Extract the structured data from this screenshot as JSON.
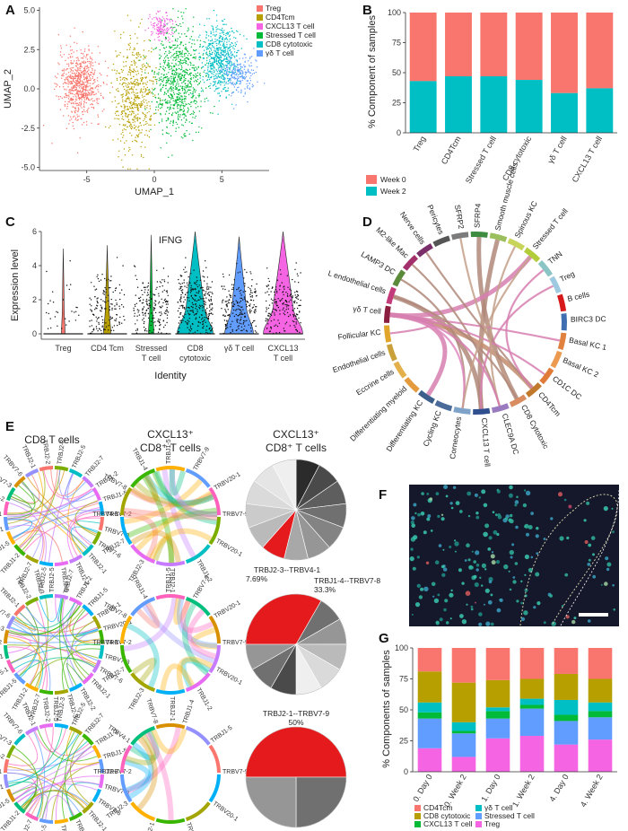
{
  "panels": {
    "A": "A",
    "B": "B",
    "C": "C",
    "D": "D",
    "E": "E",
    "F": "F",
    "G": "G"
  },
  "colors": {
    "treg": "#f8766d",
    "cd4tcm": "#b79f00",
    "cxcl13": "#f564e3",
    "stressed": "#00ba38",
    "cd8": "#00bfc4",
    "gd": "#619cff",
    "week0": "#f8766d",
    "week2": "#00bfc4",
    "pie_red": "#e41a1c"
  },
  "chart_data": [
    {
      "id": "A",
      "type": "scatter",
      "title": "",
      "xlabel": "UMAP_1",
      "ylabel": "UMAP_2",
      "xticks": [
        "-5",
        "0",
        "5"
      ],
      "yticks": [
        "5.0",
        "2.5",
        "0.0",
        "-2.5",
        "-5.0"
      ],
      "xlim": [
        -8.5,
        8.5
      ],
      "ylim": [
        -5.2,
        5.2
      ],
      "legend": [
        "Treg",
        "CD4Tcm",
        "CXCL13 T cell",
        "Stressed T cell",
        "CD8 cytotoxic",
        "γδ T cell"
      ],
      "clusters": [
        {
          "name": "Treg",
          "center": [
            -5.5,
            0.3
          ],
          "spread": [
            1.7,
            2.4
          ],
          "n": 700
        },
        {
          "name": "CD4Tcm",
          "center": [
            -1.5,
            -0.5
          ],
          "spread": [
            1.6,
            3.8
          ],
          "n": 550
        },
        {
          "name": "CXCL13 T cell",
          "center": [
            0.5,
            4.0
          ],
          "spread": [
            1.0,
            1.0
          ],
          "n": 150
        },
        {
          "name": "Stressed T cell",
          "center": [
            1.8,
            0.5
          ],
          "spread": [
            2.0,
            3.6
          ],
          "n": 800
        },
        {
          "name": "CD8 cytotoxic",
          "center": [
            4.8,
            1.8
          ],
          "spread": [
            1.5,
            2.5
          ],
          "n": 600
        },
        {
          "name": "γδ T cell",
          "center": [
            6.3,
            1.0
          ],
          "spread": [
            1.2,
            1.5
          ],
          "n": 220
        }
      ]
    },
    {
      "id": "B",
      "type": "bar",
      "stacked": true,
      "categories": [
        "Treg",
        "CD4Tcm",
        "Stressed T cell",
        "CD8 cytotoxic",
        "γδ T cell",
        "CXCL13 T cell"
      ],
      "series": [
        {
          "name": "Week 0",
          "values": [
            57,
            53,
            53,
            56,
            67,
            63
          ]
        },
        {
          "name": "Week 2",
          "values": [
            43,
            47,
            47,
            44,
            33,
            37
          ]
        }
      ],
      "ylabel": "% Component of samples",
      "yticks": [
        "0",
        "25",
        "50",
        "75",
        "100"
      ],
      "ylim": [
        0,
        100
      ]
    },
    {
      "id": "C",
      "type": "violin",
      "title": "IFNG",
      "categories": [
        "Treg",
        "CD4 Tcm",
        "Stressed T cell",
        "CD8 cytotoxic",
        "γδ T cell",
        "CXCL13 T cell"
      ],
      "xlabel": "Identity",
      "ylabel": "Expression level",
      "yticks": [
        "0",
        "2",
        "4",
        "6"
      ],
      "ylim": [
        0,
        6
      ],
      "max_values": [
        5.0,
        5.2,
        5.8,
        6.0,
        5.7,
        6.0
      ]
    },
    {
      "id": "G",
      "type": "bar",
      "stacked": true,
      "categories": [
        "0. Day 0",
        "0. Week 2",
        "1. Day 0",
        "1. Week 2",
        "4. Day 0",
        "4. Week 2"
      ],
      "series": [
        {
          "name": "Treg",
          "values": [
            19,
            12,
            27,
            29,
            22,
            26
          ]
        },
        {
          "name": "Stressed T cell",
          "values": [
            24,
            19,
            16,
            22,
            19,
            18
          ]
        },
        {
          "name": "CXCL13 T cell",
          "values": [
            5,
            2,
            6,
            3,
            5,
            5
          ]
        },
        {
          "name": "γδ T cell",
          "values": [
            8,
            7,
            3,
            5,
            12,
            7
          ]
        },
        {
          "name": "CD8 cytotoxic",
          "values": [
            25,
            32,
            22,
            16,
            21,
            19
          ]
        },
        {
          "name": "CD4Tcm",
          "values": [
            19,
            28,
            26,
            25,
            21,
            25
          ]
        }
      ],
      "ylabel": "% Components of samples",
      "yticks": [
        "0",
        "25",
        "50",
        "75",
        "100"
      ],
      "ylim": [
        0,
        100
      ]
    }
  ],
  "panelA": {
    "legend": [
      "Treg",
      "CD4Tcm",
      "CXCL13 T cell",
      "Stressed T cell",
      "CD8 cytotoxic",
      "γδ T cell"
    ],
    "xlabel": "UMAP_1",
    "ylabel": "UMAP_2"
  },
  "panelB": {
    "legend": [
      "Week 0",
      "Week 2"
    ]
  },
  "panelC": {
    "title": "IFNG",
    "xlabels": [
      [
        "Treg"
      ],
      [
        "CD4 Tcm"
      ],
      [
        "Stressed",
        "T cell"
      ],
      [
        "CD8",
        "cytotoxic"
      ],
      [
        "γδ T cell"
      ],
      [
        "CXCL13",
        "T cell"
      ]
    ]
  },
  "panelD": {
    "labels": [
      "SFRP2",
      "SFRP4",
      "Smooth muscle cells",
      "Spinous KC",
      "Stressed T cell",
      "TNN",
      "Treg",
      "B cells",
      "BIRC3 DC",
      "Basal KC 1",
      "Basal KC 2",
      "CD1C DC",
      "CD4Tcm",
      "CD8 Cytotoxic",
      "CLEC9A DC",
      "CXCL13 T cell",
      "Corneocytes",
      "Cycling KC",
      "Differentiating KC",
      "Differentiating myeloid",
      "Eccrine cells",
      "Endothelial cells",
      "Follicular KC",
      "γδ T cell",
      "L endothelial cells",
      "LAMP3 DC",
      "M2-like Mac",
      "Nerve cells",
      "Pericytes"
    ]
  },
  "panelE": {
    "headers": [
      [
        "CD8 T cells"
      ],
      [
        "CXCL13⁺",
        "CD8⁺ T cells"
      ],
      [
        "CXCL13⁺",
        "CD8⁺ T cells"
      ]
    ],
    "pies": [
      {
        "label": "TRBJ2-3--TRBV4-1",
        "pct": "7.69%",
        "highlight": 7.69,
        "others": [
          7.69,
          7.69,
          7.69,
          7.69,
          7.69,
          7.69,
          7.69,
          7.69,
          7.69,
          7.69,
          7.69,
          7.69
        ]
      },
      {
        "label": "TRBJ1-4--TRBV7-8",
        "pct": "33.3%",
        "highlight": 33.3,
        "others": [
          8.33,
          8.33,
          8.33,
          8.33,
          8.33,
          8.33,
          8.33,
          8.33
        ]
      },
      {
        "label": "TRBJ2-1--TRBV7-9",
        "pct": "50%",
        "highlight": 50,
        "others": [
          25,
          25
        ]
      }
    ],
    "chord_labels_left": [
      "TRBV7-2",
      "TRBV7-3",
      "TRBV7-6",
      "TRBJ2-1",
      "TRBJ2-2",
      "TRBJ2-3",
      "TRBJ2-5",
      "TRBJ2-7",
      "TRBJ1-2",
      "TRBJ1-5",
      "TRBV5-1",
      "TRBV20-1"
    ],
    "chord_labels_mid": [
      "TRBV7-9",
      "TRBV20-1",
      "TRBJ1-2",
      "TRBJ2-1",
      "TRBJ2-3",
      "TRBJ2-7",
      "TRBV4-1",
      "TRBV7-8",
      "TRBJ1-4",
      "TRBJ1-5"
    ]
  },
  "panelG": {
    "legend": [
      "CD4Tcm",
      "γδ T cell",
      "CD8 cytotoxic",
      "Stressed T cell",
      "CXCL13 T cell",
      "Treg"
    ]
  }
}
